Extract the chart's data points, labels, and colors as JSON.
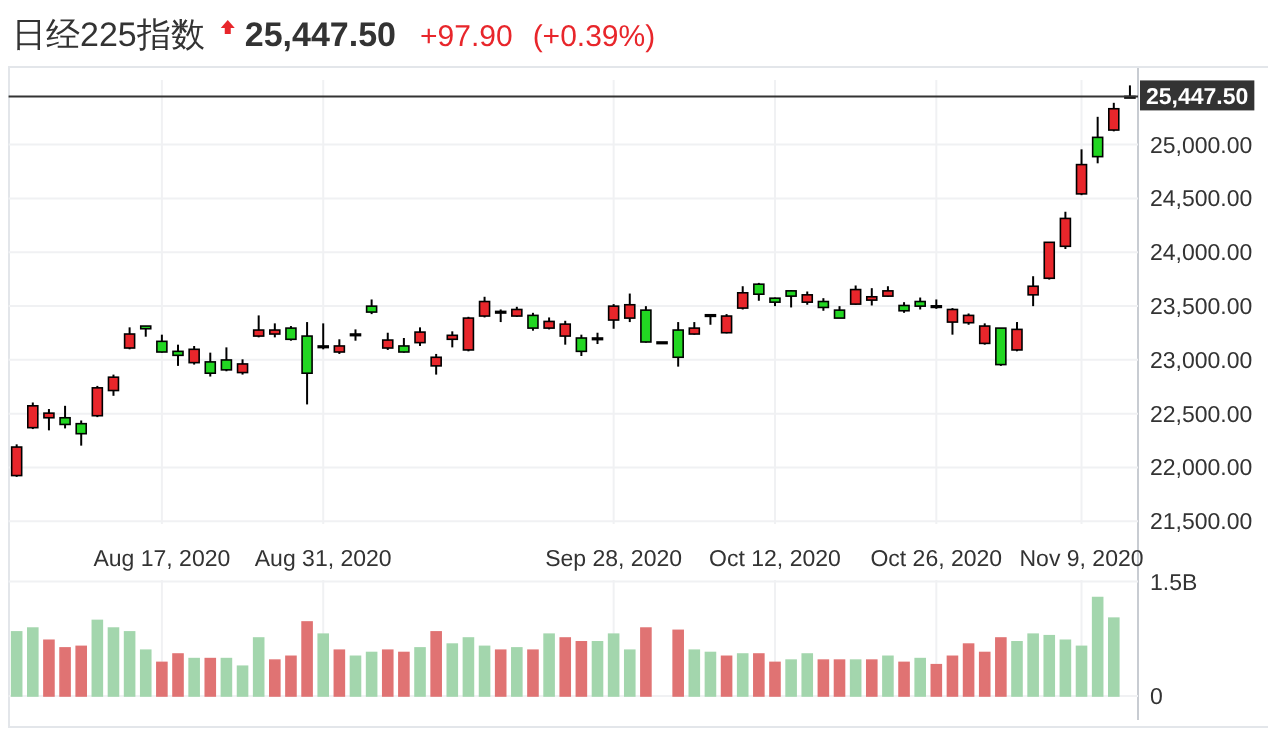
{
  "chart_data": [
    {
      "type": "candlestick",
      "title": "日经225指数",
      "annotations": [
        "25,447.50",
        "+97.90",
        "(+0.39%)"
      ],
      "categories": [
        null,
        null,
        null,
        null,
        null,
        null,
        null,
        null,
        null,
        "Aug 17, 2020",
        null,
        null,
        null,
        null,
        null,
        null,
        null,
        null,
        null,
        "Aug 31, 2020",
        null,
        null,
        null,
        null,
        null,
        null,
        null,
        null,
        null,
        null,
        null,
        null,
        null,
        null,
        null,
        null,
        null,
        "Sep 28, 2020",
        null,
        null,
        null,
        null,
        null,
        null,
        null,
        null,
        null,
        "Oct 12, 2020",
        null,
        null,
        null,
        null,
        null,
        null,
        null,
        null,
        null,
        "Oct 26, 2020",
        null,
        null,
        null,
        null,
        null,
        null,
        null,
        null,
        "Nov 9, 2020",
        null,
        null,
        null
      ],
      "ohlc": [
        [
          21925,
          22215,
          21913,
          22190
        ],
        [
          22370,
          22604,
          22357,
          22573
        ],
        [
          22462,
          22543,
          22345,
          22505
        ],
        [
          22462,
          22573,
          22363,
          22400
        ],
        [
          22407,
          22437,
          22203,
          22314
        ],
        [
          22481,
          22758,
          22468,
          22740
        ],
        [
          22715,
          22863,
          22666,
          22839
        ],
        [
          23110,
          23302,
          23098,
          23240
        ],
        [
          23314,
          23314,
          23215,
          23289
        ],
        [
          23172,
          23234,
          23067,
          23073
        ],
        [
          23079,
          23141,
          22944,
          23042
        ],
        [
          22974,
          23129,
          22956,
          23098
        ],
        [
          22981,
          23067,
          22845,
          22876
        ],
        [
          22999,
          23116,
          22894,
          22907
        ],
        [
          22882,
          23005,
          22863,
          22962
        ],
        [
          23221,
          23413,
          23209,
          23277
        ],
        [
          23240,
          23339,
          23209,
          23277
        ],
        [
          23295,
          23314,
          23178,
          23191
        ],
        [
          23221,
          23351,
          22586,
          22876
        ],
        [
          23129,
          23339,
          23098,
          23123
        ],
        [
          23073,
          23191,
          23055,
          23129
        ],
        [
          23234,
          23283,
          23178,
          23240
        ],
        [
          23499,
          23561,
          23425,
          23444
        ],
        [
          23110,
          23252,
          23092,
          23184
        ],
        [
          23129,
          23203,
          23067,
          23073
        ],
        [
          23160,
          23302,
          23129,
          23258
        ],
        [
          22944,
          23055,
          22863,
          23024
        ],
        [
          23191,
          23265,
          23116,
          23228
        ],
        [
          23092,
          23400,
          23079,
          23388
        ],
        [
          23407,
          23586,
          23394,
          23542
        ],
        [
          23444,
          23468,
          23351,
          23450
        ],
        [
          23407,
          23493,
          23400,
          23468
        ],
        [
          23413,
          23437,
          23271,
          23295
        ],
        [
          23295,
          23394,
          23283,
          23357
        ],
        [
          23221,
          23363,
          23141,
          23332
        ],
        [
          23203,
          23234,
          23036,
          23079
        ],
        [
          23197,
          23252,
          23147,
          23203
        ],
        [
          23370,
          23518,
          23289,
          23499
        ],
        [
          23388,
          23616,
          23351,
          23512
        ],
        [
          23462,
          23499,
          23160,
          23166
        ],
        [
          23166,
          23166,
          23160,
          23160
        ],
        [
          23277,
          23351,
          22937,
          23024
        ],
        [
          23240,
          23351,
          23234,
          23295
        ],
        [
          23413,
          23425,
          23326,
          23419
        ],
        [
          23252,
          23425,
          23246,
          23407
        ],
        [
          23481,
          23684,
          23468,
          23623
        ],
        [
          23703,
          23715,
          23549,
          23610
        ],
        [
          23573,
          23579,
          23499,
          23536
        ],
        [
          23641,
          23647,
          23487,
          23592
        ],
        [
          23536,
          23635,
          23512,
          23604
        ],
        [
          23542,
          23573,
          23456,
          23487
        ],
        [
          23462,
          23499,
          23388,
          23388
        ],
        [
          23518,
          23691,
          23512,
          23653
        ],
        [
          23555,
          23666,
          23505,
          23586
        ],
        [
          23592,
          23684,
          23586,
          23641
        ],
        [
          23505,
          23536,
          23437,
          23456
        ],
        [
          23542,
          23579,
          23468,
          23499
        ],
        [
          23502,
          23561,
          23474,
          23499
        ],
        [
          23351,
          23481,
          23234,
          23468
        ],
        [
          23345,
          23431,
          23326,
          23413
        ],
        [
          23153,
          23339,
          23141,
          23314
        ],
        [
          23295,
          23295,
          22944,
          22956
        ],
        [
          23092,
          23351,
          23079,
          23283
        ],
        [
          23604,
          23777,
          23499,
          23684
        ],
        [
          23758,
          24092,
          23746,
          24092
        ],
        [
          24055,
          24376,
          24030,
          24314
        ],
        [
          24542,
          24956,
          24530,
          24814
        ],
        [
          25067,
          25258,
          24826,
          24888
        ],
        [
          25135,
          25388,
          25123,
          25333
        ],
        [
          25440,
          25550,
          25440,
          25447.5
        ]
      ],
      "colors": [
        "#e8262b",
        "#e8262b",
        "#e8262b",
        "#22d622",
        "#22d622",
        "#e8262b",
        "#e8262b",
        "#e8262b",
        "#22d622",
        "#22d622",
        "#22d622",
        "#e8262b",
        "#22d622",
        "#22d622",
        "#e8262b",
        "#e8262b",
        "#e8262b",
        "#22d622",
        "#22d622",
        "#22d622",
        "#e8262b",
        "#e8262b",
        "#22d622",
        "#e8262b",
        "#22d622",
        "#e8262b",
        "#e8262b",
        "#e8262b",
        "#e8262b",
        "#e8262b",
        "#e8262b",
        "#e8262b",
        "#22d622",
        "#e8262b",
        "#e8262b",
        "#22d622",
        "#e8262b",
        "#e8262b",
        "#e8262b",
        "#22d622",
        "#e8262b",
        "#22d622",
        "#e8262b",
        "#e8262b",
        "#e8262b",
        "#e8262b",
        "#22d622",
        "#22d622",
        "#22d622",
        "#e8262b",
        "#22d622",
        "#22d622",
        "#e8262b",
        "#e8262b",
        "#e8262b",
        "#22d622",
        "#22d622",
        "#22d622",
        "#e8262b",
        "#e8262b",
        "#e8262b",
        "#22d622",
        "#e8262b",
        "#e8262b",
        "#e8262b",
        "#e8262b",
        "#e8262b",
        "#22d622",
        "#e8262b",
        "#e8262b"
      ],
      "ylim": [
        21475,
        25600
      ],
      "yticks": [
        {
          "value": 21500,
          "label": "21,500.00"
        },
        {
          "value": 22000,
          "label": "22,000.00"
        },
        {
          "value": 22500,
          "label": "22,500.00"
        },
        {
          "value": 23000,
          "label": "23,000.00"
        },
        {
          "value": 23500,
          "label": "23,500.00"
        },
        {
          "value": 24000,
          "label": "24,000.00"
        },
        {
          "value": 24500,
          "label": "24,500.00"
        },
        {
          "value": 25000,
          "label": "25,000.00"
        }
      ],
      "ref_lines": [
        {
          "axis": "y",
          "value": 25447.5,
          "label": "25,447.50",
          "color": "#333333"
        }
      ],
      "grid": true
    },
    {
      "type": "bar",
      "categories": [
        null,
        null,
        null,
        null,
        null,
        null,
        null,
        null,
        null,
        null,
        null,
        null,
        null,
        null,
        null,
        null,
        null,
        null,
        null,
        null,
        null,
        null,
        null,
        null,
        null,
        null,
        null,
        null,
        null,
        null,
        null,
        null,
        null,
        null,
        null,
        null,
        null,
        null,
        null,
        null,
        null,
        null,
        null,
        null,
        null,
        null,
        null,
        null,
        null,
        null,
        null,
        null,
        null,
        null,
        null,
        null,
        null,
        null,
        null,
        null,
        null,
        null,
        null,
        null,
        null,
        null,
        null,
        null,
        null,
        null
      ],
      "values": [
        0.84,
        0.89,
        0.73,
        0.63,
        0.65,
        0.99,
        0.89,
        0.84,
        0.6,
        0.44,
        0.55,
        0.49,
        0.49,
        0.49,
        0.39,
        0.76,
        0.47,
        0.52,
        0.97,
        0.81,
        0.6,
        0.52,
        0.57,
        0.6,
        0.57,
        0.63,
        0.84,
        0.68,
        0.76,
        0.65,
        0.6,
        0.63,
        0.6,
        0.81,
        0.76,
        0.71,
        0.71,
        0.81,
        0.6,
        0.89,
        null,
        0.86,
        0.6,
        0.57,
        0.52,
        0.55,
        0.55,
        0.44,
        0.47,
        0.55,
        0.47,
        0.47,
        0.47,
        0.47,
        0.52,
        0.44,
        0.49,
        0.41,
        0.52,
        0.68,
        0.57,
        0.76,
        0.71,
        0.81,
        0.79,
        0.73,
        0.65,
        1.29,
        1.02,
        null
      ],
      "colors": [
        "#a3d6ad",
        "#a3d6ad",
        "#e07373",
        "#e07373",
        "#e07373",
        "#a3d6ad",
        "#a3d6ad",
        "#a3d6ad",
        "#a3d6ad",
        "#e07373",
        "#e07373",
        "#a3d6ad",
        "#e07373",
        "#a3d6ad",
        "#a3d6ad",
        "#a3d6ad",
        "#e07373",
        "#e07373",
        "#e07373",
        "#a3d6ad",
        "#e07373",
        "#a3d6ad",
        "#a3d6ad",
        "#e07373",
        "#e07373",
        "#a3d6ad",
        "#e07373",
        "#a3d6ad",
        "#a3d6ad",
        "#a3d6ad",
        "#e07373",
        "#a3d6ad",
        "#e07373",
        "#a3d6ad",
        "#e07373",
        "#e07373",
        "#a3d6ad",
        "#a3d6ad",
        "#a3d6ad",
        "#e07373",
        null,
        "#e07373",
        "#a3d6ad",
        "#a3d6ad",
        "#e07373",
        "#a3d6ad",
        "#e07373",
        "#e07373",
        "#a3d6ad",
        "#a3d6ad",
        "#e07373",
        "#e07373",
        "#a3d6ad",
        "#e07373",
        "#a3d6ad",
        "#e07373",
        "#a3d6ad",
        "#e07373",
        "#e07373",
        "#e07373",
        "#e07373",
        "#e07373",
        "#a3d6ad",
        "#a3d6ad",
        "#a3d6ad",
        "#a3d6ad",
        "#a3d6ad",
        "#a3d6ad",
        "#a3d6ad",
        null
      ],
      "ylim": [
        0,
        1.52
      ],
      "yticks": [
        0,
        {
          "value": 1.5,
          "label": "1.5B"
        }
      ],
      "tick_labels": "y",
      "grid": true
    }
  ]
}
